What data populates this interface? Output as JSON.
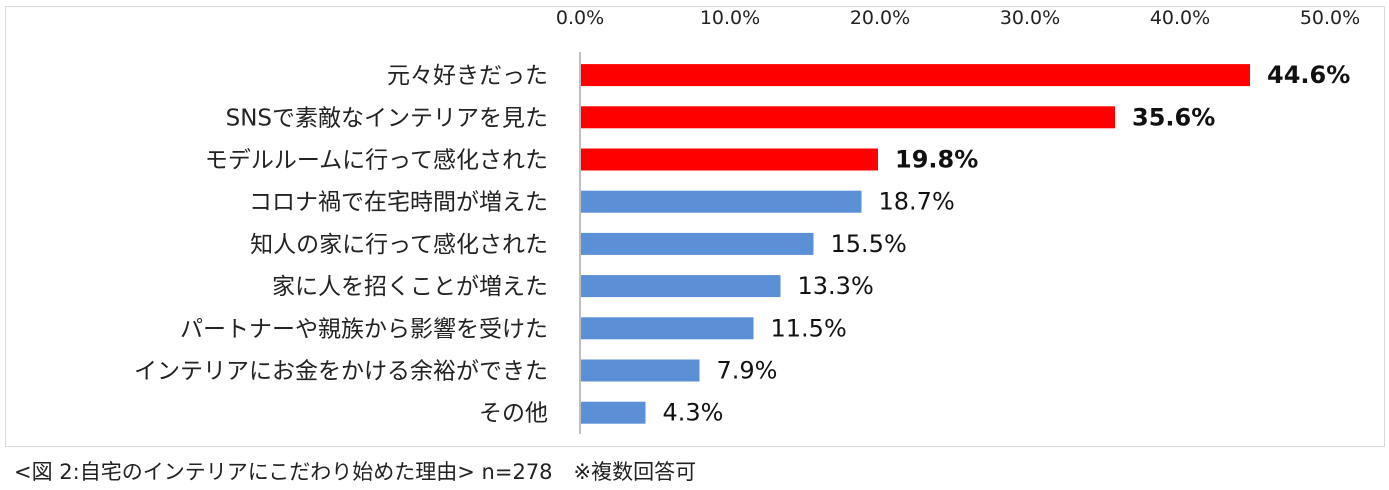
{
  "chart_data": {
    "type": "bar",
    "orientation": "horizontal",
    "xlim": [
      0,
      50
    ],
    "tick_labels": [
      "0.0%",
      "10.0%",
      "20.0%",
      "30.0%",
      "40.0%",
      "50.0%"
    ],
    "tick_values": [
      0,
      10,
      20,
      30,
      40,
      50
    ],
    "categories": [
      "元々好きだった",
      "SNSで素敵なインテリアを見た",
      "モデルルームに行って感化された",
      "コロナ禍で在宅時間が増えた",
      "知人の家に行って感化された",
      "家に人を招くことが増えた",
      "パートナーや親族から影響を受けた",
      "インテリアにお金をかける余裕ができた",
      "その他"
    ],
    "values": [
      44.6,
      35.6,
      19.8,
      18.7,
      15.5,
      13.3,
      11.5,
      7.9,
      4.3
    ],
    "value_labels": [
      "44.6%",
      "35.6%",
      "19.8%",
      "18.7%",
      "15.5%",
      "13.3%",
      "11.5%",
      "7.9%",
      "4.3%"
    ],
    "highlighted": [
      true,
      true,
      true,
      false,
      false,
      false,
      false,
      false,
      false
    ],
    "colors": {
      "highlight": "#ff0000",
      "normal": "#5b8fd6",
      "axis": "#bfbfbf"
    }
  },
  "caption": "<図 2:自宅のインテリアにこだわり始めた理由> n=278　※複数回答可"
}
